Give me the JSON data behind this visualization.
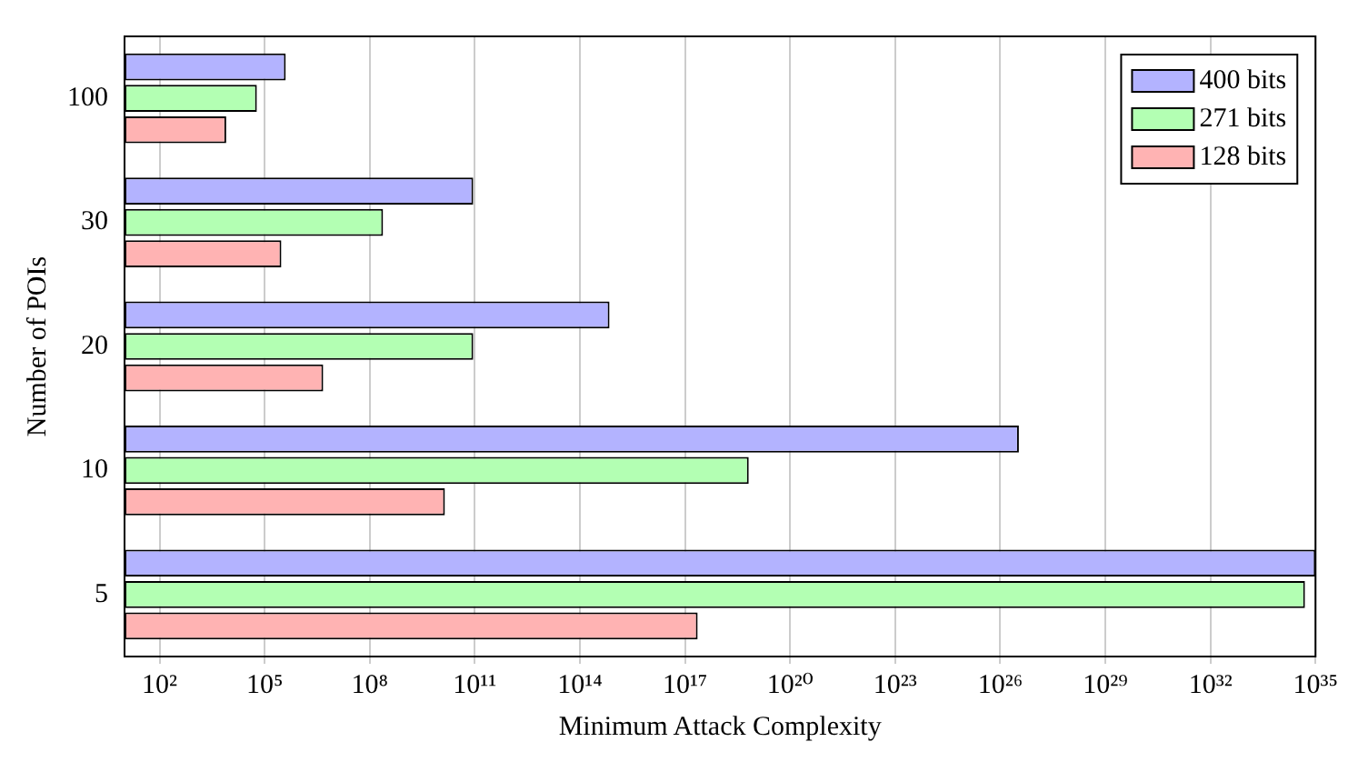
{
  "chart_data": {
    "type": "bar",
    "orientation": "horizontal",
    "xlabel": "Minimum Attack Complexity",
    "ylabel": "Number of POIs",
    "categories": [
      "100",
      "30",
      "20",
      "10",
      "5"
    ],
    "series": [
      {
        "name": "400 bits",
        "color": "#b3b3ff",
        "values": [
          400000.0,
          90000000000.0,
          700000000000000.0,
          3.4e+26,
          1e+35
        ]
      },
      {
        "name": "271 bits",
        "color": "#b3ffb3",
        "values": [
          60000.0,
          240000000.0,
          90000000000.0,
          6.6e+18,
          5e+34
        ]
      },
      {
        "name": "128 bits",
        "color": "#ffb3b3",
        "values": [
          8000.0,
          300000.0,
          4700000.0,
          14000000000.0,
          2.3e+17
        ]
      }
    ],
    "log": "x",
    "xlim": [
      10,
      1e+35
    ],
    "xticks": [
      {
        "value": 100,
        "label": "10²"
      },
      {
        "value": 100000.0,
        "label": "10⁵"
      },
      {
        "value": 100000000.0,
        "label": "10⁸"
      },
      {
        "value": 100000000000.0,
        "label": "10¹¹"
      },
      {
        "value": 100000000000000.0,
        "label": "10¹⁴"
      },
      {
        "value": 1e+17,
        "label": "10¹⁷"
      },
      {
        "value": 1e+20,
        "label": "10²⁰"
      },
      {
        "value": 1e+23,
        "label": "10²³"
      },
      {
        "value": 1e+26,
        "label": "10²⁶"
      },
      {
        "value": 1e+29,
        "label": "10²⁹"
      },
      {
        "value": 1e+32,
        "label": "10³²"
      },
      {
        "value": 1e+35,
        "label": "10³⁵"
      }
    ],
    "grid": "x",
    "legend": "top right"
  }
}
